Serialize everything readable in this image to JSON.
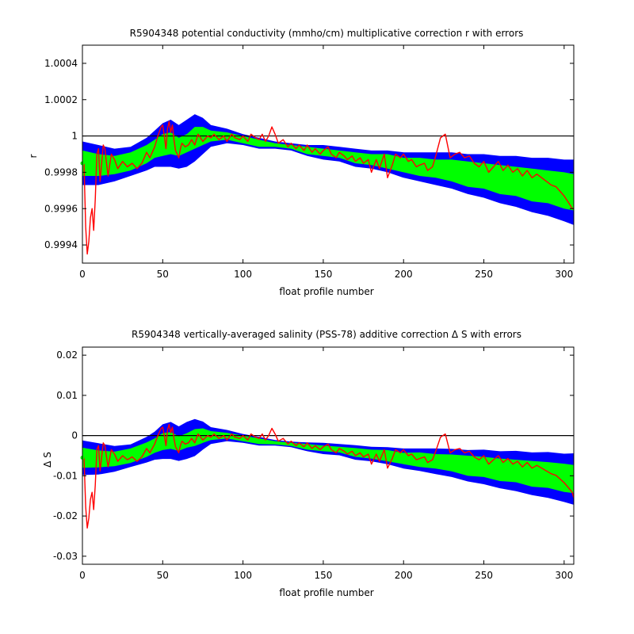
{
  "chart_data": [
    {
      "type": "line",
      "title": "R5904348 potential conductivity (mmho/cm) multiplicative correction r with errors",
      "xlabel": "float profile number",
      "ylabel": "r",
      "xlim": [
        0,
        306
      ],
      "ylim": [
        0.9993,
        1.0005
      ],
      "xticks": [
        0,
        50,
        100,
        150,
        200,
        250,
        300
      ],
      "xtick_labels": [
        "0",
        "50",
        "100",
        "150",
        "200",
        "250",
        "300"
      ],
      "yticks": [
        0.9994,
        0.9996,
        0.9998,
        1.0,
        1.0002,
        1.0004
      ],
      "ytick_labels": [
        "0.9994",
        "0.9996",
        "0.9998",
        "1",
        "1.0002",
        "1.0004"
      ],
      "reference_line": 1.0,
      "colors": {
        "outer_band": "#0000ff",
        "inner_band": "#00ff00",
        "series": "#ff0000",
        "reference": "#000000"
      },
      "grid": false,
      "bands": {
        "x": [
          0,
          10,
          20,
          30,
          40,
          45,
          50,
          55,
          60,
          65,
          70,
          75,
          80,
          90,
          100,
          110,
          120,
          130,
          140,
          150,
          160,
          170,
          180,
          190,
          200,
          210,
          220,
          230,
          240,
          250,
          260,
          270,
          280,
          290,
          300,
          306
        ],
        "center": [
          0.99985,
          0.99984,
          0.99984,
          0.99986,
          0.9999,
          0.99993,
          0.99995,
          0.99996,
          0.99994,
          0.99996,
          0.99999,
          1.0,
          1.0,
          1.0,
          0.99998,
          0.99996,
          0.99995,
          0.99994,
          0.99992,
          0.99991,
          0.9999,
          0.99988,
          0.99987,
          0.99986,
          0.99984,
          0.99983,
          0.99982,
          0.99981,
          0.99979,
          0.99978,
          0.99976,
          0.99975,
          0.99973,
          0.99972,
          0.9997,
          0.99969
        ],
        "inner_half": [
          7e-05,
          6e-05,
          5e-05,
          5e-05,
          5e-05,
          5e-05,
          6e-05,
          6e-05,
          5e-05,
          5e-05,
          6e-05,
          5e-05,
          3e-05,
          2e-05,
          2e-05,
          2e-05,
          1e-05,
          1e-05,
          2e-05,
          2e-05,
          2e-05,
          3e-05,
          3e-05,
          4e-05,
          4e-05,
          5e-05,
          5e-05,
          6e-05,
          7e-05,
          7e-05,
          8e-05,
          8e-05,
          9e-05,
          9e-05,
          0.0001,
          0.0001
        ],
        "outer_half": [
          0.00012,
          0.00011,
          9e-05,
          8e-05,
          9e-05,
          0.0001,
          0.00012,
          0.00013,
          0.00012,
          0.00013,
          0.00013,
          0.0001,
          6e-05,
          4e-05,
          3e-05,
          3e-05,
          2e-05,
          2e-05,
          3e-05,
          4e-05,
          4e-05,
          5e-05,
          5e-05,
          6e-05,
          7e-05,
          8e-05,
          9e-05,
          0.0001,
          0.00011,
          0.00012,
          0.00013,
          0.00014,
          0.00015,
          0.00016,
          0.00017,
          0.00018
        ]
      },
      "series": [
        {
          "x": [
            1,
            2,
            3,
            4,
            5,
            6,
            7,
            8,
            9,
            10,
            11,
            12,
            13,
            14,
            15,
            16,
            18,
            20,
            22,
            25,
            28,
            31,
            34,
            37,
            40,
            42,
            45,
            47,
            49,
            50,
            51,
            52,
            53,
            54,
            55,
            56,
            57,
            58,
            60,
            61,
            62,
            64,
            66,
            68,
            70,
            72,
            75,
            78,
            80,
            82,
            85,
            88,
            90,
            93,
            95,
            98,
            100,
            103,
            105,
            108,
            110,
            112,
            114,
            116,
            118,
            120,
            122,
            125,
            128,
            130,
            133,
            135,
            138,
            140,
            143,
            145,
            148,
            150,
            153,
            155,
            158,
            160,
            163,
            165,
            168,
            170,
            173,
            175,
            178,
            180,
            183,
            185,
            188,
            190,
            193,
            195,
            198,
            200,
            203,
            205,
            208,
            210,
            213,
            215,
            218,
            220,
            223,
            226,
            229,
            232,
            235,
            238,
            241,
            244,
            247,
            250,
            253,
            256,
            259,
            262,
            265,
            268,
            271,
            274,
            277,
            280,
            283,
            286,
            289,
            292,
            295,
            298,
            300,
            303,
            305,
            306
          ],
          "y": [
            0.99985,
            0.9995,
            0.99935,
            0.99942,
            0.99955,
            0.9996,
            0.99948,
            0.99965,
            0.9999,
            0.99993,
            0.99975,
            0.99985,
            0.99995,
            0.99993,
            0.99985,
            0.99978,
            0.9999,
            0.99987,
            0.99982,
            0.99986,
            0.99983,
            0.99985,
            0.99982,
            0.99985,
            0.99991,
            0.99988,
            0.99994,
            1.0,
            1.00005,
            1.00006,
            1.0,
            0.99993,
            1.00004,
            1.00008,
            1.00002,
            1.00006,
            0.99998,
            0.99992,
            0.99988,
            0.99993,
            0.99996,
            0.99994,
            0.99995,
            0.99998,
            0.99995,
            1.00001,
            0.99997,
            1.0,
            0.99999,
            1.00001,
            0.99998,
            1.0,
            0.99997,
            1.00001,
            0.99999,
            0.99998,
            1.0,
            0.99997,
            1.00001,
            0.99999,
            0.99998,
            1.00001,
            0.99997,
            1.0,
            1.00005,
            1.00001,
            0.99996,
            0.99998,
            0.99994,
            0.99996,
            0.99993,
            0.99995,
            0.99992,
            0.99995,
            0.99991,
            0.99993,
            0.9999,
            0.99992,
            0.99994,
            0.9999,
            0.99988,
            0.99991,
            0.99989,
            0.99987,
            0.99989,
            0.99986,
            0.99988,
            0.99985,
            0.99987,
            0.9998,
            0.99987,
            0.99982,
            0.9999,
            0.99977,
            0.99984,
            0.9999,
            0.99988,
            0.9999,
            0.99986,
            0.99987,
            0.99983,
            0.99984,
            0.99985,
            0.99981,
            0.99983,
            0.99989,
            0.99999,
            1.00001,
            0.99988,
            0.9999,
            0.99991,
            0.99988,
            0.99989,
            0.99985,
            0.99983,
            0.99986,
            0.9998,
            0.99983,
            0.99986,
            0.99981,
            0.99984,
            0.9998,
            0.99982,
            0.99978,
            0.99981,
            0.99977,
            0.99979,
            0.99977,
            0.99975,
            0.99973,
            0.99972,
            0.99969,
            0.99967,
            0.99963,
            0.9996,
            0.9996
          ]
        }
      ]
    },
    {
      "type": "line",
      "title": "R5904348 vertically-averaged salinity (PSS-78) additive correction Δ S with errors",
      "xlabel": "float profile number",
      "ylabel": "Δ S",
      "xlim": [
        0,
        306
      ],
      "ylim": [
        -0.032,
        0.022
      ],
      "xticks": [
        0,
        50,
        100,
        150,
        200,
        250,
        300
      ],
      "xtick_labels": [
        "0",
        "50",
        "100",
        "150",
        "200",
        "250",
        "300"
      ],
      "yticks": [
        -0.03,
        -0.02,
        -0.01,
        0.0,
        0.01,
        0.02
      ],
      "ytick_labels": [
        "-0.03",
        "-0.02",
        "-0.01",
        "0",
        "0.01",
        "0.02"
      ],
      "reference_line": 0.0,
      "colors": {
        "outer_band": "#0000ff",
        "inner_band": "#00ff00",
        "series": "#ff0000",
        "reference": "#000000"
      },
      "grid": false,
      "bands": {
        "x": [
          0,
          10,
          20,
          30,
          40,
          45,
          50,
          55,
          60,
          65,
          70,
          75,
          80,
          90,
          100,
          110,
          120,
          130,
          140,
          150,
          160,
          170,
          180,
          190,
          200,
          210,
          220,
          230,
          240,
          250,
          260,
          270,
          280,
          290,
          300,
          306
        ],
        "center": [
          -0.0055,
          -0.0058,
          -0.0058,
          -0.005,
          -0.0035,
          -0.0025,
          -0.0015,
          -0.0012,
          -0.002,
          -0.0012,
          -0.0005,
          0.0,
          0.0,
          0.0,
          -0.0007,
          -0.0014,
          -0.0018,
          -0.0022,
          -0.0028,
          -0.0032,
          -0.0035,
          -0.0042,
          -0.0046,
          -0.005,
          -0.0057,
          -0.006,
          -0.0064,
          -0.0068,
          -0.0075,
          -0.0078,
          -0.0085,
          -0.0088,
          -0.0095,
          -0.0098,
          -0.0105,
          -0.0108
        ],
        "inner_half": [
          0.0025,
          0.0021,
          0.0018,
          0.0018,
          0.0018,
          0.0018,
          0.0021,
          0.0021,
          0.0018,
          0.0018,
          0.0021,
          0.0018,
          0.0011,
          0.0007,
          0.0007,
          0.0007,
          0.0004,
          0.0004,
          0.0007,
          0.0007,
          0.0007,
          0.0011,
          0.0011,
          0.0014,
          0.0014,
          0.0018,
          0.0018,
          0.0021,
          0.0025,
          0.0025,
          0.0028,
          0.0028,
          0.0032,
          0.0032,
          0.0035,
          0.0035
        ],
        "outer_half": [
          0.0043,
          0.0039,
          0.0032,
          0.0028,
          0.0032,
          0.0035,
          0.0043,
          0.0046,
          0.0043,
          0.0046,
          0.0046,
          0.0035,
          0.0021,
          0.0014,
          0.0011,
          0.0011,
          0.0007,
          0.0007,
          0.0011,
          0.0014,
          0.0014,
          0.0018,
          0.0018,
          0.0021,
          0.0025,
          0.0028,
          0.0032,
          0.0035,
          0.0039,
          0.0043,
          0.0046,
          0.005,
          0.0053,
          0.0057,
          0.006,
          0.0064
        ]
      },
      "series": [
        {
          "x": [
            1,
            2,
            3,
            4,
            5,
            6,
            7,
            8,
            9,
            10,
            11,
            12,
            13,
            14,
            15,
            16,
            18,
            20,
            22,
            25,
            28,
            31,
            34,
            37,
            40,
            42,
            45,
            47,
            49,
            50,
            51,
            52,
            53,
            54,
            55,
            56,
            57,
            58,
            60,
            61,
            62,
            64,
            66,
            68,
            70,
            72,
            75,
            78,
            80,
            82,
            85,
            88,
            90,
            93,
            95,
            98,
            100,
            103,
            105,
            108,
            110,
            112,
            114,
            116,
            118,
            120,
            122,
            125,
            128,
            130,
            133,
            135,
            138,
            140,
            143,
            145,
            148,
            150,
            153,
            155,
            158,
            160,
            163,
            165,
            168,
            170,
            173,
            175,
            178,
            180,
            183,
            185,
            188,
            190,
            193,
            195,
            198,
            200,
            203,
            205,
            208,
            210,
            213,
            215,
            218,
            220,
            223,
            226,
            229,
            232,
            235,
            238,
            241,
            244,
            247,
            250,
            253,
            256,
            259,
            262,
            265,
            268,
            271,
            274,
            277,
            280,
            283,
            286,
            289,
            292,
            295,
            298,
            300,
            303,
            305,
            306
          ],
          "y": [
            -0.0053,
            -0.0177,
            -0.023,
            -0.0205,
            -0.0159,
            -0.0141,
            -0.0184,
            -0.0124,
            -0.0035,
            -0.0025,
            -0.0088,
            -0.0053,
            -0.0018,
            -0.0025,
            -0.0053,
            -0.0078,
            -0.0035,
            -0.0046,
            -0.0064,
            -0.005,
            -0.006,
            -0.0053,
            -0.0064,
            -0.0053,
            -0.0032,
            -0.0043,
            -0.0021,
            0.0,
            0.0018,
            0.0021,
            0.0,
            -0.0025,
            0.0014,
            0.0028,
            0.0007,
            0.0021,
            -0.0007,
            -0.0028,
            -0.0043,
            -0.0025,
            -0.0014,
            -0.0021,
            -0.0018,
            -0.0007,
            -0.0018,
            0.0004,
            -0.0011,
            0.0,
            -0.0004,
            0.0004,
            -0.0007,
            0.0,
            -0.0011,
            0.0004,
            -0.0004,
            -0.0007,
            0.0,
            -0.0011,
            0.0004,
            -0.0004,
            -0.0007,
            0.0004,
            -0.0011,
            0.0,
            0.0018,
            0.0004,
            -0.0014,
            -0.0007,
            -0.0021,
            -0.0014,
            -0.0025,
            -0.0018,
            -0.0028,
            -0.0018,
            -0.0032,
            -0.0025,
            -0.0035,
            -0.0028,
            -0.0021,
            -0.0035,
            -0.0043,
            -0.0032,
            -0.0039,
            -0.0046,
            -0.0039,
            -0.005,
            -0.0043,
            -0.0053,
            -0.0046,
            -0.0071,
            -0.0046,
            -0.0064,
            -0.0035,
            -0.0081,
            -0.0057,
            -0.0035,
            -0.0043,
            -0.0035,
            -0.005,
            -0.0046,
            -0.006,
            -0.0057,
            -0.0053,
            -0.0067,
            -0.006,
            -0.0039,
            -0.0004,
            0.0004,
            -0.0043,
            -0.0035,
            -0.0032,
            -0.0043,
            -0.0039,
            -0.0053,
            -0.006,
            -0.005,
            -0.0071,
            -0.006,
            -0.005,
            -0.0067,
            -0.0057,
            -0.0071,
            -0.0064,
            -0.0078,
            -0.0067,
            -0.0081,
            -0.0074,
            -0.0081,
            -0.0088,
            -0.0095,
            -0.0099,
            -0.011,
            -0.0117,
            -0.0131,
            -0.0141,
            -0.0155
          ]
        }
      ]
    }
  ]
}
